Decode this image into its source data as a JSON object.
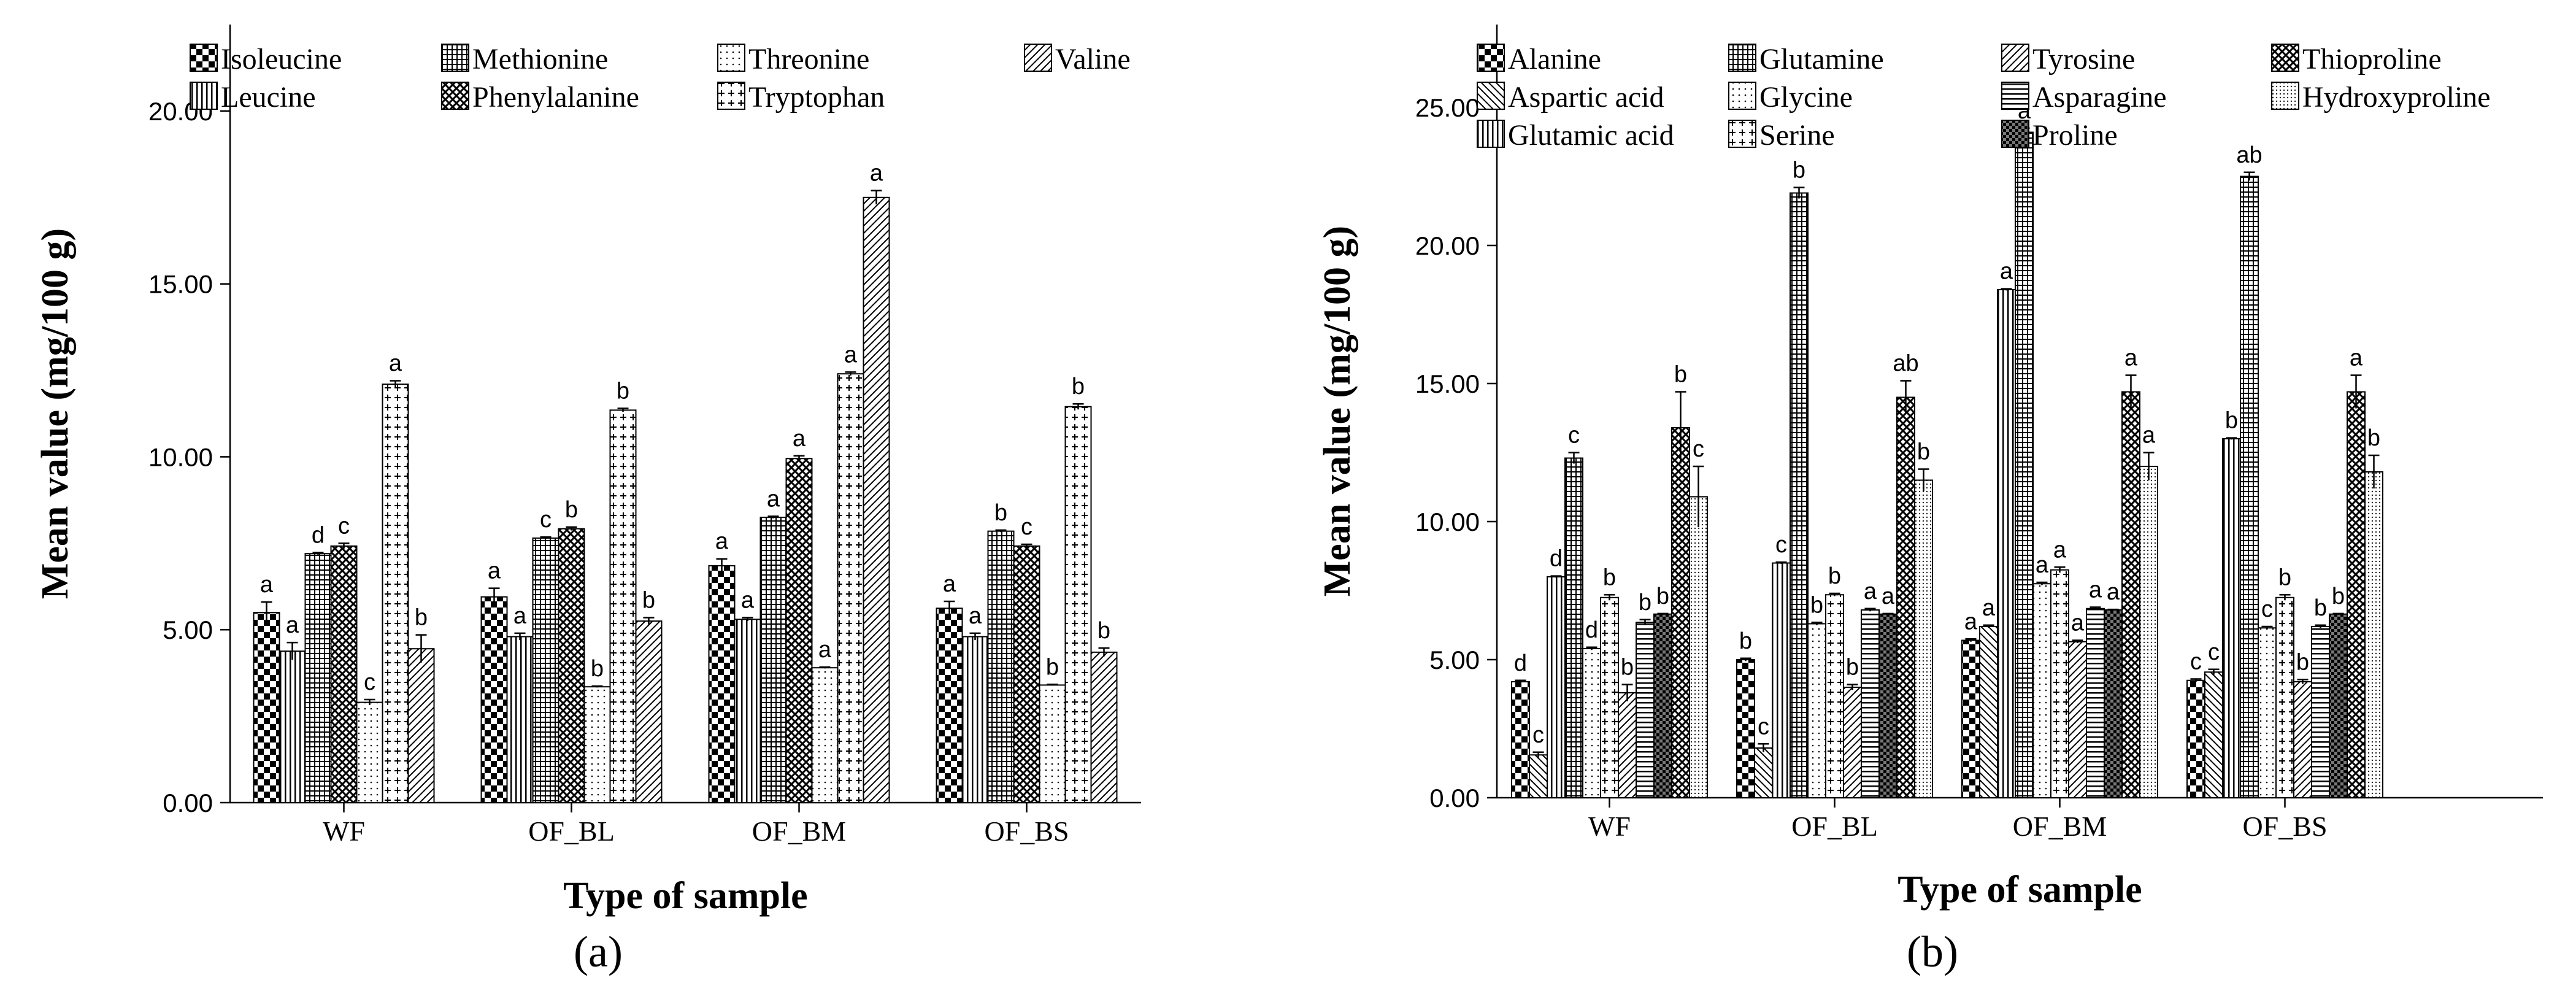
{
  "figure": {
    "panels": [
      "(a)",
      "(b)"
    ]
  },
  "chart_data": [
    {
      "type": "bar",
      "panel_label": "(a)",
      "title": "",
      "xlabel": "Type of sample",
      "ylabel": "Mean value (mg/100 g)",
      "ylim": [
        0,
        22.5
      ],
      "yticks": [
        "0.00",
        "5.00",
        "10.00",
        "15.00",
        "20.00"
      ],
      "grid": false,
      "legend_position": "top",
      "categories": [
        "WF",
        "OF_BL",
        "OF_BM",
        "OF_BS"
      ],
      "series": [
        {
          "name": "Isoleucine",
          "pattern": "checker",
          "values": [
            5.5,
            5.95,
            6.85,
            5.62
          ],
          "errors": [
            0.3,
            0.25,
            0.2,
            0.2
          ],
          "letters": [
            "a",
            "a",
            "a",
            "a"
          ]
        },
        {
          "name": "Leucine",
          "pattern": "vlines",
          "values": [
            4.38,
            4.8,
            5.3,
            4.8
          ],
          "errors": [
            0.25,
            0.1,
            0.05,
            0.1
          ],
          "letters": [
            "a",
            "a",
            "a",
            "a"
          ]
        },
        {
          "name": "Methionine",
          "pattern": "grid",
          "values": [
            7.2,
            7.65,
            8.25,
            7.85
          ],
          "errors": [
            0.03,
            0.03,
            0.03,
            0.03
          ],
          "letters": [
            "d",
            "c",
            "a",
            "b"
          ]
        },
        {
          "name": "Phenylalanine",
          "pattern": "crosshatch",
          "values": [
            7.42,
            7.92,
            9.95,
            7.42
          ],
          "errors": [
            0.08,
            0.05,
            0.08,
            0.05
          ],
          "letters": [
            "c",
            "b",
            "a",
            "c"
          ]
        },
        {
          "name": "Threonine",
          "pattern": "dots",
          "values": [
            2.9,
            3.35,
            3.9,
            3.4
          ],
          "errors": [
            0.08,
            0.02,
            0.02,
            0.02
          ],
          "letters": [
            "c",
            "b",
            "a",
            "b"
          ]
        },
        {
          "name": "Tryptophan",
          "pattern": "plus",
          "values": [
            12.1,
            11.35,
            12.4,
            11.45
          ],
          "errors": [
            0.1,
            0.05,
            0.05,
            0.08
          ],
          "letters": [
            "a",
            "b",
            "a",
            "b"
          ]
        },
        {
          "name": "Valine",
          "pattern": "diag",
          "values": [
            4.45,
            5.25,
            17.5,
            4.35
          ],
          "errors": [
            0.4,
            0.1,
            0.2,
            0.12
          ],
          "letters": [
            "b",
            "b",
            "a",
            "b"
          ]
        }
      ]
    },
    {
      "type": "bar",
      "panel_label": "(b)",
      "title": "",
      "xlabel": "Type of sample",
      "ylabel": "Mean value (mg/100 g)",
      "ylim": [
        0,
        28
      ],
      "yticks": [
        "0.00",
        "5.00",
        "10.00",
        "15.00",
        "20.00",
        "25.00"
      ],
      "grid": false,
      "legend_position": "top",
      "categories": [
        "WF",
        "OF_BL",
        "OF_BM",
        "OF_BS"
      ],
      "series": [
        {
          "name": "Alanine",
          "pattern": "checker",
          "values": [
            4.2,
            5.0,
            5.7,
            4.25
          ],
          "errors": [
            0.05,
            0.05,
            0.05,
            0.05
          ],
          "letters": [
            "d",
            "b",
            "a",
            "c"
          ]
        },
        {
          "name": "Aspartic acid",
          "pattern": "backdiag",
          "values": [
            1.55,
            1.8,
            6.2,
            4.55
          ],
          "errors": [
            0.1,
            0.15,
            0.05,
            0.1
          ],
          "letters": [
            "c",
            "c",
            "a",
            "c"
          ]
        },
        {
          "name": "Glutamic acid",
          "pattern": "vlines",
          "values": [
            8.0,
            8.5,
            18.4,
            13.0
          ],
          "errors": [
            0.03,
            0.03,
            0.03,
            0.03
          ],
          "letters": [
            "d",
            "c",
            "a",
            "b"
          ]
        },
        {
          "name": "Glutamine",
          "pattern": "grid",
          "values": [
            12.3,
            21.9,
            24.1,
            22.5
          ],
          "errors": [
            0.2,
            0.2,
            0.15,
            0.15
          ],
          "letters": [
            "c",
            "b",
            "a",
            "ab"
          ]
        },
        {
          "name": "Glycine",
          "pattern": "dots",
          "values": [
            5.4,
            6.3,
            7.75,
            6.15
          ],
          "errors": [
            0.05,
            0.05,
            0.05,
            0.05
          ],
          "letters": [
            "d",
            "b",
            "a",
            "c"
          ]
        },
        {
          "name": "Serine",
          "pattern": "plus",
          "values": [
            7.25,
            7.35,
            8.25,
            7.25
          ],
          "errors": [
            0.1,
            0.05,
            0.1,
            0.1
          ],
          "letters": [
            "b",
            "b",
            "a",
            "b"
          ]
        },
        {
          "name": "Tyrosine",
          "pattern": "diag",
          "values": [
            3.8,
            4.0,
            5.65,
            4.2
          ],
          "errors": [
            0.3,
            0.1,
            0.05,
            0.08
          ],
          "letters": [
            "b",
            "b",
            "a",
            "b"
          ]
        },
        {
          "name": "Asparagine",
          "pattern": "hlines",
          "values": [
            6.35,
            6.8,
            6.85,
            6.2
          ],
          "errors": [
            0.1,
            0.05,
            0.05,
            0.05
          ],
          "letters": [
            "b",
            "a",
            "a",
            "b"
          ]
        },
        {
          "name": "Proline",
          "pattern": "darkcheck",
          "values": [
            6.65,
            6.65,
            6.8,
            6.65
          ],
          "errors": [
            0.02,
            0.02,
            0.02,
            0.02
          ],
          "letters": [
            "b",
            "a",
            "a",
            "b"
          ]
        },
        {
          "name": "Thioproline",
          "pattern": "crosshatch",
          "values": [
            13.4,
            14.5,
            14.7,
            14.7
          ],
          "errors": [
            1.3,
            0.6,
            0.6,
            0.6
          ],
          "letters": [
            "b",
            "ab",
            "a",
            "a"
          ]
        },
        {
          "name": "Hydroxyproline",
          "pattern": "dotted",
          "values": [
            10.9,
            11.5,
            12.0,
            11.8
          ],
          "errors": [
            1.1,
            0.4,
            0.5,
            0.6
          ],
          "letters": [
            "c",
            "b",
            "a",
            "b"
          ]
        }
      ]
    }
  ]
}
